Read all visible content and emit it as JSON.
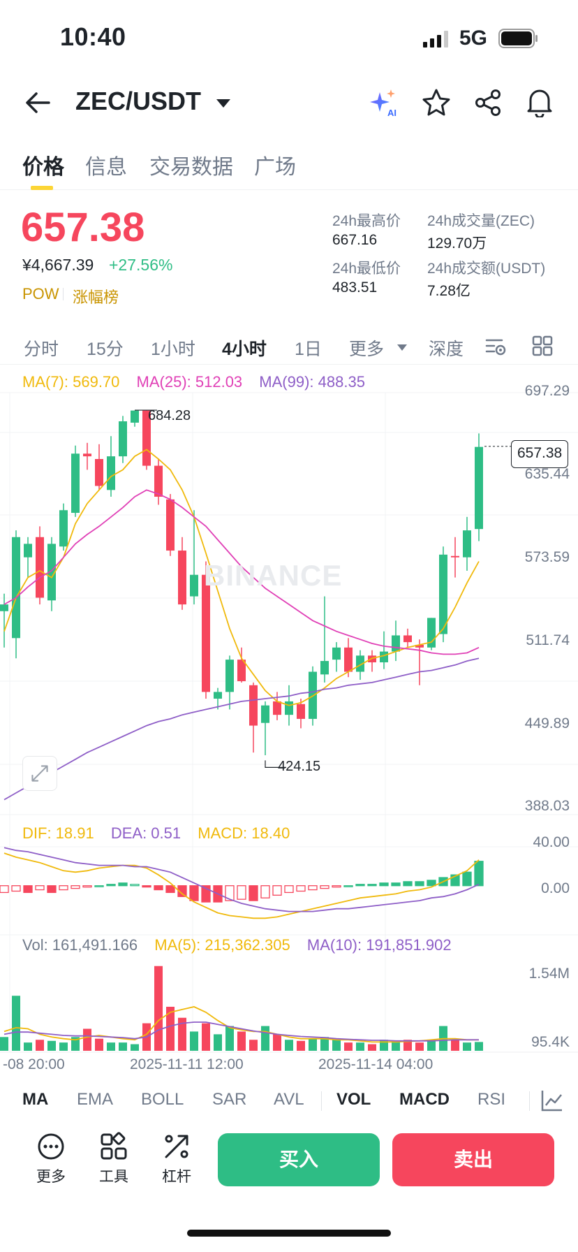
{
  "status_bar": {
    "time": "10:40",
    "network": "5G"
  },
  "nav": {
    "pair": "ZEC/USDT"
  },
  "tabs": [
    {
      "label": "价格"
    },
    {
      "label": "信息"
    },
    {
      "label": "交易数据"
    },
    {
      "label": "广场"
    }
  ],
  "price": {
    "last": "657.38",
    "cny": "¥4,667.39",
    "change": "+27.56%",
    "tag1": "POW",
    "tag2": "涨幅榜",
    "stats": [
      {
        "label": "24h最高价",
        "value": "667.16"
      },
      {
        "label": "24h成交量(ZEC)",
        "value": "129.70万"
      },
      {
        "label": "24h最低价",
        "value": "483.51"
      },
      {
        "label": "24h成交额(USDT)",
        "value": "7.28亿"
      }
    ]
  },
  "intervals": [
    {
      "label": "分时"
    },
    {
      "label": "15分"
    },
    {
      "label": "1小时"
    },
    {
      "label": "4小时"
    },
    {
      "label": "1日"
    },
    {
      "label": "更多"
    },
    {
      "label": "深度"
    }
  ],
  "colors": {
    "up": "#2ebd85",
    "down": "#f6465d",
    "ma7": "#f0b90b",
    "ma25": "#e040b6",
    "ma99": "#8e5ec7",
    "accent": "#fcd535"
  },
  "main_legend": {
    "ma7": "MA(7): 569.70",
    "ma25": "MA(25): 512.03",
    "ma99": "MA(99): 488.35"
  },
  "price_axis": [
    "697.29",
    "635.44",
    "573.59",
    "511.74",
    "449.89",
    "388.03"
  ],
  "current_price_tag": "657.38",
  "high_marker": "684.28",
  "low_marker": "424.15",
  "watermark": "BINANCE",
  "macd_legend": {
    "dif": "DIF: 18.91",
    "dea": "DEA: 0.51",
    "macd": "MACD: 18.40"
  },
  "macd_axis": [
    "40.00",
    "0.00"
  ],
  "vol_legend": {
    "vol": "Vol: 161,491.166",
    "ma5": "MA(5): 215,362.305",
    "ma10": "MA(10): 191,851.902"
  },
  "vol_axis": [
    "1.54M",
    "95.4K"
  ],
  "time_axis": [
    "-08 20:00",
    "2025-11-11 12:00",
    "2025-11-14 04:00"
  ],
  "indicators": [
    {
      "label": "MA"
    },
    {
      "label": "EMA"
    },
    {
      "label": "BOLL"
    },
    {
      "label": "SAR"
    },
    {
      "label": "AVL"
    },
    {
      "label": "VOL"
    },
    {
      "label": "MACD"
    },
    {
      "label": "RSI"
    }
  ],
  "actions": [
    {
      "label": "更多"
    },
    {
      "label": "工具"
    },
    {
      "label": "杠杆"
    }
  ],
  "buy_label": "买入",
  "sell_label": "卖出",
  "chart_data": {
    "type": "candlestick",
    "candles": [
      [
        535,
        540,
        509,
        508,
        548
      ],
      [
        515,
        590,
        508,
        500,
        595
      ],
      [
        575,
        585,
        575,
        560,
        590
      ],
      [
        590,
        545,
        590,
        540,
        598
      ],
      [
        543,
        585,
        543,
        535,
        590
      ],
      [
        583,
        610,
        580,
        580,
        615
      ],
      [
        608,
        652,
        606,
        605,
        658
      ],
      [
        652,
        650,
        652,
        640,
        660
      ],
      [
        648,
        628,
        655,
        625,
        659
      ],
      [
        625,
        650,
        624,
        620,
        665
      ],
      [
        650,
        676,
        648,
        645,
        680
      ],
      [
        675,
        684,
        673,
        672,
        684
      ],
      [
        684,
        643,
        684,
        640,
        684
      ],
      [
        643,
        620,
        643,
        614,
        648
      ],
      [
        618,
        580,
        618,
        576,
        622
      ],
      [
        580,
        540,
        580,
        536,
        590
      ],
      [
        546,
        562,
        545,
        540,
        610
      ],
      [
        562,
        475,
        562,
        470,
        572
      ],
      [
        470,
        475,
        470,
        462,
        478
      ],
      [
        475,
        499,
        472,
        462,
        502
      ],
      [
        499,
        483,
        500,
        482,
        508
      ],
      [
        480,
        450,
        480,
        430,
        482
      ],
      [
        452,
        465,
        430,
        428,
        468
      ],
      [
        468,
        458,
        468,
        454,
        475
      ],
      [
        458,
        468,
        458,
        450,
        480
      ],
      [
        466,
        455,
        466,
        448,
        470
      ],
      [
        455,
        490,
        452,
        450,
        494
      ],
      [
        488,
        498,
        488,
        482,
        546
      ],
      [
        499,
        508,
        499,
        490,
        512
      ],
      [
        508,
        490,
        508,
        486,
        515
      ],
      [
        490,
        502,
        488,
        484,
        506
      ],
      [
        502,
        497,
        504,
        490,
        506
      ],
      [
        497,
        505,
        497,
        492,
        520
      ],
      [
        505,
        517,
        500,
        498,
        528
      ],
      [
        517,
        512,
        520,
        508,
        522
      ],
      [
        510,
        508,
        510,
        480,
        514
      ],
      [
        508,
        530,
        508,
        506,
        530
      ],
      [
        518,
        577,
        518,
        512,
        583
      ],
      [
        576,
        575,
        576,
        560,
        590
      ],
      [
        575,
        595,
        575,
        565,
        605
      ],
      [
        596,
        657,
        596,
        587,
        667
      ]
    ],
    "candle_format": [
      "open",
      "close",
      "worst_low_proxy",
      "low",
      "high"
    ],
    "ma7": [
      520,
      545,
      560,
      565,
      560,
      575,
      600,
      615,
      625,
      635,
      640,
      650,
      655,
      648,
      640,
      625,
      605,
      578,
      550,
      522,
      500,
      488,
      476,
      468,
      465,
      467,
      472,
      478,
      485,
      490,
      495,
      500,
      502,
      505,
      508,
      510,
      512,
      522,
      538,
      556,
      572
    ],
    "ma25": [
      540,
      545,
      553,
      560,
      565,
      575,
      585,
      592,
      598,
      605,
      612,
      620,
      625,
      622,
      618,
      612,
      605,
      598,
      588,
      578,
      568,
      560,
      552,
      546,
      540,
      534,
      528,
      524,
      520,
      517,
      514,
      511,
      509,
      508,
      507,
      506,
      504,
      503,
      503,
      504,
      508
    ],
    "ma99": [
      395,
      400,
      405,
      410,
      415,
      420,
      425,
      430,
      434,
      438,
      442,
      446,
      450,
      453,
      455,
      458,
      460,
      462,
      464,
      466,
      468,
      469,
      470,
      471,
      472,
      474,
      475,
      477,
      478,
      480,
      481,
      482,
      484,
      486,
      488,
      490,
      491,
      493,
      495,
      498,
      500
    ],
    "macd_hist": [
      -5,
      -4,
      -5,
      -3,
      -5,
      -3,
      -2,
      -1,
      0,
      1,
      2,
      1,
      -1,
      -3,
      -5,
      -8,
      -11,
      -12,
      -12,
      -11,
      -10,
      -11,
      -9,
      -7,
      -5,
      -4,
      -3,
      -2,
      -1,
      0,
      1,
      1,
      2,
      2,
      3,
      3,
      4,
      6,
      8,
      10,
      18
    ],
    "dif": [
      24,
      21,
      19,
      17,
      14,
      11,
      10,
      11,
      13,
      14,
      15,
      15,
      13,
      8,
      2,
      -6,
      -12,
      -16,
      -20,
      -22,
      -23,
      -24,
      -24,
      -23,
      -21,
      -19,
      -17,
      -15,
      -13,
      -11,
      -9,
      -8,
      -7,
      -6,
      -4,
      -3,
      -1,
      3,
      7,
      11,
      19
    ],
    "dea": [
      28,
      26,
      25,
      23,
      21,
      19,
      17,
      16,
      15,
      15,
      15,
      14,
      14,
      12,
      10,
      6,
      2,
      -2,
      -6,
      -10,
      -13,
      -15,
      -17,
      -18,
      -19,
      -19,
      -19,
      -18,
      -17,
      -17,
      -16,
      -15,
      -14,
      -13,
      -12,
      -11,
      -9,
      -8,
      -6,
      -3,
      1
    ],
    "volume": [
      0.25,
      1.0,
      0.15,
      0.2,
      0.18,
      0.15,
      0.25,
      0.4,
      0.22,
      0.15,
      0.15,
      0.12,
      0.5,
      1.54,
      0.8,
      0.6,
      0.35,
      0.5,
      0.3,
      0.45,
      0.35,
      0.2,
      0.45,
      0.3,
      0.2,
      0.18,
      0.22,
      0.25,
      0.2,
      0.15,
      0.15,
      0.12,
      0.2,
      0.18,
      0.2,
      0.15,
      0.2,
      0.45,
      0.2,
      0.15,
      0.16
    ],
    "vol_ma5": [
      0.35,
      0.42,
      0.4,
      0.3,
      0.25,
      0.22,
      0.2,
      0.25,
      0.28,
      0.25,
      0.22,
      0.2,
      0.3,
      0.55,
      0.7,
      0.75,
      0.8,
      0.7,
      0.55,
      0.42,
      0.38,
      0.35,
      0.35,
      0.3,
      0.25,
      0.22,
      0.22,
      0.22,
      0.2,
      0.2,
      0.18,
      0.16,
      0.16,
      0.16,
      0.17,
      0.18,
      0.2,
      0.22,
      0.22,
      0.2,
      0.2
    ],
    "vol_ma10": [
      0.3,
      0.34,
      0.34,
      0.32,
      0.3,
      0.28,
      0.27,
      0.27,
      0.26,
      0.25,
      0.24,
      0.22,
      0.25,
      0.38,
      0.45,
      0.5,
      0.52,
      0.52,
      0.48,
      0.44,
      0.4,
      0.36,
      0.33,
      0.3,
      0.28,
      0.26,
      0.25,
      0.24,
      0.22,
      0.21,
      0.2,
      0.19,
      0.19,
      0.18,
      0.18,
      0.18,
      0.18,
      0.19,
      0.2,
      0.2,
      0.2
    ]
  }
}
